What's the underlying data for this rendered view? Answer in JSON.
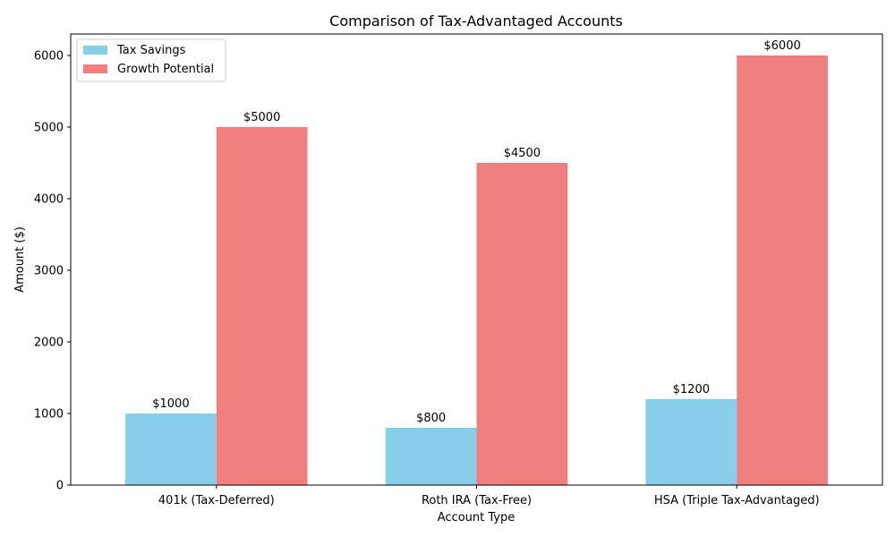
{
  "chart_data": {
    "type": "bar",
    "title": "Comparison of Tax-Advantaged Accounts",
    "xlabel": "Account Type",
    "ylabel": "Amount ($)",
    "ylim": [
      0,
      6300
    ],
    "yticks": [
      0,
      1000,
      2000,
      3000,
      4000,
      5000,
      6000
    ],
    "categories": [
      "401k (Tax-Deferred)",
      "Roth IRA (Tax-Free)",
      "HSA (Triple Tax-Advantaged)"
    ],
    "series": [
      {
        "name": "Tax Savings",
        "color": "#87ceeb",
        "values": [
          1000,
          800,
          1200
        ],
        "labels": [
          "$1000",
          "$800",
          "$1200"
        ]
      },
      {
        "name": "Growth Potential",
        "color": "#f08080",
        "values": [
          5000,
          4500,
          6000
        ],
        "labels": [
          "$5000",
          "$4500",
          "$6000"
        ]
      }
    ],
    "legend": "top-left",
    "grid": false
  }
}
